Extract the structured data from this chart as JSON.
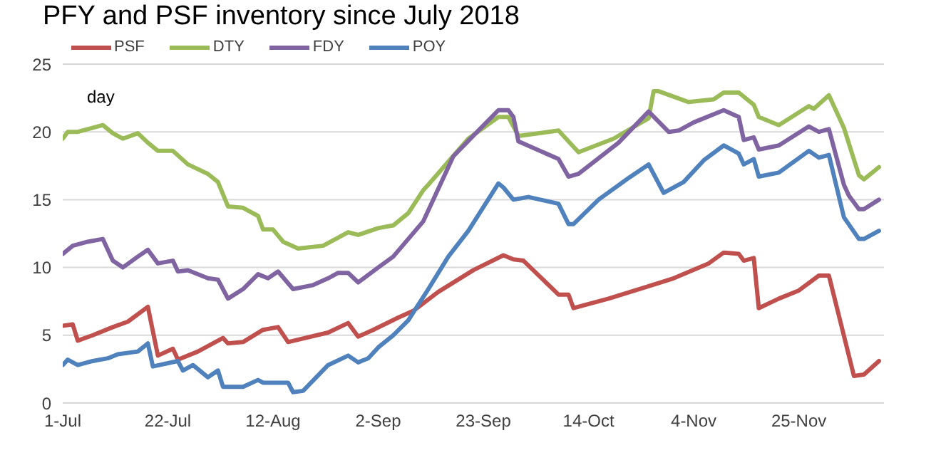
{
  "chart_data": {
    "type": "line",
    "title": "PFY and PSF inventory since July 2018",
    "ylabel": "day",
    "xlim": [
      "2018-07-01",
      "2018-12-12"
    ],
    "xticks": [
      {
        "value": "2018-07-01",
        "label": "1-Jul"
      },
      {
        "value": "2018-07-22",
        "label": "22-Jul"
      },
      {
        "value": "2018-08-12",
        "label": "12-Aug"
      },
      {
        "value": "2018-09-02",
        "label": "2-Sep"
      },
      {
        "value": "2018-09-23",
        "label": "23-Sep"
      },
      {
        "value": "2018-10-14",
        "label": "14-Oct"
      },
      {
        "value": "2018-11-04",
        "label": "4-Nov"
      },
      {
        "value": "2018-11-25",
        "label": "25-Nov"
      }
    ],
    "ylim": [
      0,
      25
    ],
    "yticks": [
      0,
      5,
      10,
      15,
      20,
      25
    ],
    "grid": "y",
    "legend": "top",
    "series": [
      {
        "name": "PSF",
        "color": "#c0504d",
        "x": [
          "2018-07-01",
          "2018-07-03",
          "2018-07-04",
          "2018-07-07",
          "2018-07-11",
          "2018-07-14",
          "2018-07-18",
          "2018-07-20",
          "2018-07-23",
          "2018-07-24",
          "2018-07-28",
          "2018-08-02",
          "2018-08-03",
          "2018-08-06",
          "2018-08-10",
          "2018-08-13",
          "2018-08-15",
          "2018-08-23",
          "2018-08-27",
          "2018-08-29",
          "2018-09-01",
          "2018-09-06",
          "2018-09-09",
          "2018-09-14",
          "2018-09-21",
          "2018-09-27",
          "2018-09-29",
          "2018-10-01",
          "2018-10-08",
          "2018-10-10",
          "2018-10-11",
          "2018-10-18",
          "2018-10-25",
          "2018-10-31",
          "2018-11-07",
          "2018-11-10",
          "2018-11-13",
          "2018-11-14",
          "2018-11-16",
          "2018-11-17",
          "2018-11-21",
          "2018-11-25",
          "2018-11-29",
          "2018-12-01",
          "2018-12-06",
          "2018-12-08",
          "2018-12-11"
        ],
        "values": [
          5.7,
          5.8,
          4.6,
          5.0,
          5.6,
          6.0,
          7.1,
          3.5,
          4.0,
          3.2,
          3.8,
          4.8,
          4.4,
          4.5,
          5.4,
          5.6,
          4.5,
          5.2,
          5.9,
          4.9,
          5.4,
          6.3,
          6.8,
          8.2,
          9.8,
          10.9,
          10.6,
          10.5,
          8.0,
          8.0,
          7.0,
          7.7,
          8.5,
          9.2,
          10.3,
          11.1,
          11.0,
          10.5,
          10.7,
          7.0,
          7.7,
          8.3,
          9.4,
          9.4,
          2.0,
          2.1,
          3.1
        ]
      },
      {
        "name": "DTY",
        "color": "#9bbb59",
        "x": [
          "2018-07-01",
          "2018-07-02",
          "2018-07-04",
          "2018-07-06",
          "2018-07-09",
          "2018-07-11",
          "2018-07-13",
          "2018-07-16",
          "2018-07-18",
          "2018-07-20",
          "2018-07-23",
          "2018-07-26",
          "2018-07-30",
          "2018-08-01",
          "2018-08-03",
          "2018-08-06",
          "2018-08-09",
          "2018-08-10",
          "2018-08-12",
          "2018-08-14",
          "2018-08-17",
          "2018-08-22",
          "2018-08-27",
          "2018-08-29",
          "2018-09-02",
          "2018-09-05",
          "2018-09-08",
          "2018-09-11",
          "2018-09-12",
          "2018-09-16",
          "2018-09-20",
          "2018-09-26",
          "2018-09-28",
          "2018-09-30",
          "2018-10-08",
          "2018-10-12",
          "2018-10-19",
          "2018-10-26",
          "2018-10-27",
          "2018-10-28",
          "2018-11-03",
          "2018-11-08",
          "2018-11-10",
          "2018-11-13",
          "2018-11-16",
          "2018-11-17",
          "2018-11-21",
          "2018-11-27",
          "2018-11-28",
          "2018-12-01",
          "2018-12-04",
          "2018-12-07",
          "2018-12-08",
          "2018-12-11"
        ],
        "values": [
          19.5,
          20.0,
          20.0,
          20.2,
          20.5,
          19.9,
          19.5,
          19.9,
          19.2,
          18.6,
          18.6,
          17.6,
          16.9,
          16.3,
          14.5,
          14.4,
          13.8,
          12.8,
          12.8,
          11.9,
          11.4,
          11.6,
          12.6,
          12.4,
          12.9,
          13.1,
          14.0,
          15.7,
          16.1,
          17.8,
          19.5,
          21.1,
          21.1,
          19.7,
          20.1,
          18.5,
          19.5,
          21.0,
          23.0,
          23.0,
          22.2,
          22.4,
          22.9,
          22.9,
          22.0,
          21.1,
          20.5,
          21.9,
          21.7,
          22.7,
          20.3,
          16.8,
          16.5,
          17.4
        ]
      },
      {
        "name": "FDY",
        "color": "#8064a2",
        "x": [
          "2018-07-01",
          "2018-07-03",
          "2018-07-06",
          "2018-07-09",
          "2018-07-11",
          "2018-07-13",
          "2018-07-16",
          "2018-07-18",
          "2018-07-20",
          "2018-07-23",
          "2018-07-24",
          "2018-07-26",
          "2018-07-30",
          "2018-08-01",
          "2018-08-03",
          "2018-08-06",
          "2018-08-09",
          "2018-08-11",
          "2018-08-13",
          "2018-08-16",
          "2018-08-20",
          "2018-08-23",
          "2018-08-25",
          "2018-08-27",
          "2018-08-29",
          "2018-09-02",
          "2018-09-05",
          "2018-09-08",
          "2018-09-11",
          "2018-09-17",
          "2018-09-22",
          "2018-09-26",
          "2018-09-28",
          "2018-09-29",
          "2018-09-30",
          "2018-10-08",
          "2018-10-10",
          "2018-10-12",
          "2018-10-20",
          "2018-10-26",
          "2018-10-30",
          "2018-11-01",
          "2018-11-04",
          "2018-11-10",
          "2018-11-13",
          "2018-11-14",
          "2018-11-16",
          "2018-11-17",
          "2018-11-21",
          "2018-11-27",
          "2018-11-29",
          "2018-12-01",
          "2018-12-04",
          "2018-12-05",
          "2018-12-07",
          "2018-12-08",
          "2018-12-11"
        ],
        "values": [
          11.0,
          11.6,
          11.9,
          12.1,
          10.5,
          10.0,
          10.8,
          11.3,
          10.3,
          10.5,
          9.7,
          9.8,
          9.2,
          9.1,
          7.7,
          8.4,
          9.5,
          9.2,
          9.7,
          8.4,
          8.7,
          9.2,
          9.6,
          9.6,
          8.9,
          10.0,
          10.8,
          12.1,
          13.4,
          18.2,
          20.1,
          21.6,
          21.6,
          21.1,
          19.3,
          18.0,
          16.7,
          16.9,
          19.2,
          21.5,
          20.0,
          20.1,
          20.7,
          21.6,
          21.1,
          19.4,
          19.6,
          18.7,
          19.0,
          20.4,
          20.0,
          20.2,
          16.1,
          15.3,
          14.3,
          14.3,
          15.0
        ]
      },
      {
        "name": "POY",
        "color": "#4f81bd",
        "x": [
          "2018-07-01",
          "2018-07-02",
          "2018-07-04",
          "2018-07-07",
          "2018-07-10",
          "2018-07-12",
          "2018-07-16",
          "2018-07-18",
          "2018-07-19",
          "2018-07-24",
          "2018-07-25",
          "2018-07-27",
          "2018-07-30",
          "2018-08-01",
          "2018-08-02",
          "2018-08-06",
          "2018-08-09",
          "2018-08-10",
          "2018-08-15",
          "2018-08-16",
          "2018-08-18",
          "2018-08-23",
          "2018-08-27",
          "2018-08-29",
          "2018-08-31",
          "2018-09-02",
          "2018-09-05",
          "2018-09-08",
          "2018-09-12",
          "2018-09-16",
          "2018-09-20",
          "2018-09-26",
          "2018-09-27",
          "2018-09-29",
          "2018-10-02",
          "2018-10-08",
          "2018-10-10",
          "2018-10-11",
          "2018-10-16",
          "2018-10-22",
          "2018-10-26",
          "2018-10-29",
          "2018-11-02",
          "2018-11-06",
          "2018-11-10",
          "2018-11-13",
          "2018-11-14",
          "2018-11-16",
          "2018-11-17",
          "2018-11-21",
          "2018-11-27",
          "2018-11-29",
          "2018-12-01",
          "2018-12-04",
          "2018-12-07",
          "2018-12-08",
          "2018-12-11"
        ],
        "values": [
          2.8,
          3.2,
          2.8,
          3.1,
          3.3,
          3.6,
          3.8,
          4.4,
          2.7,
          3.1,
          2.4,
          2.8,
          1.9,
          2.4,
          1.2,
          1.2,
          1.7,
          1.5,
          1.5,
          0.8,
          0.9,
          2.8,
          3.5,
          3.0,
          3.3,
          4.1,
          5.0,
          6.1,
          8.4,
          10.8,
          12.7,
          16.2,
          15.9,
          15.0,
          15.2,
          14.7,
          13.2,
          13.2,
          15.0,
          16.6,
          17.6,
          15.5,
          16.3,
          17.9,
          19.0,
          18.4,
          17.6,
          18.0,
          16.7,
          17.0,
          18.6,
          18.1,
          18.3,
          13.7,
          12.1,
          12.1,
          12.7
        ]
      }
    ]
  }
}
